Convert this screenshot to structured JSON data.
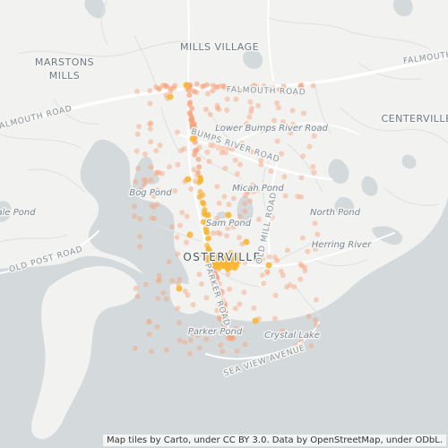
{
  "map": {
    "colors": {
      "land": "#f2f2f0",
      "water": "#d4dadc",
      "road": "#ffffff",
      "minor_road": "#e4e4e2",
      "dot": "#f6a27a",
      "dense_dot": "#f7b733"
    },
    "labels": {
      "places": {
        "mills_village": "MILLS VILLAGE",
        "marstons_mills_line1": "MARSTONS",
        "marstons_mills_line2": "MILLS",
        "centerville": "CENTERVILLE",
        "osterville": "OSTERVILLE"
      },
      "roads": {
        "falmouth_road_center": "FALMOUTH ROAD",
        "falmouth_road_left": "FALMOUTH ROAD",
        "falmouth_road_right": "FALMOUTH",
        "bumps_river_road": "BUMPS RIVER ROAD",
        "old_mill_road": "OLD MILL ROAD",
        "parker_road": "PARKER ROAD",
        "sea_view_avenue": "SEA VIEW AVENUE",
        "old_post_road": "OLD POST ROAD"
      },
      "water": {
        "lower_bumps_river_road": "Lower Bumps River Road",
        "bog_pond": "Bog Pond",
        "micah_pond": "Micah Pond",
        "north_pond": "North Pond",
        "sam_pond": "Sam Pond",
        "herring_river": "Herring River",
        "parker_pond": "Parker Pond",
        "crystal_lake": "Crystal Lake",
        "gale_pond": "ale Pond"
      }
    },
    "attribution": "Map tiles by Carto, under CC BY 3.0. Data by OpenStreetMap, under ODbL."
  }
}
